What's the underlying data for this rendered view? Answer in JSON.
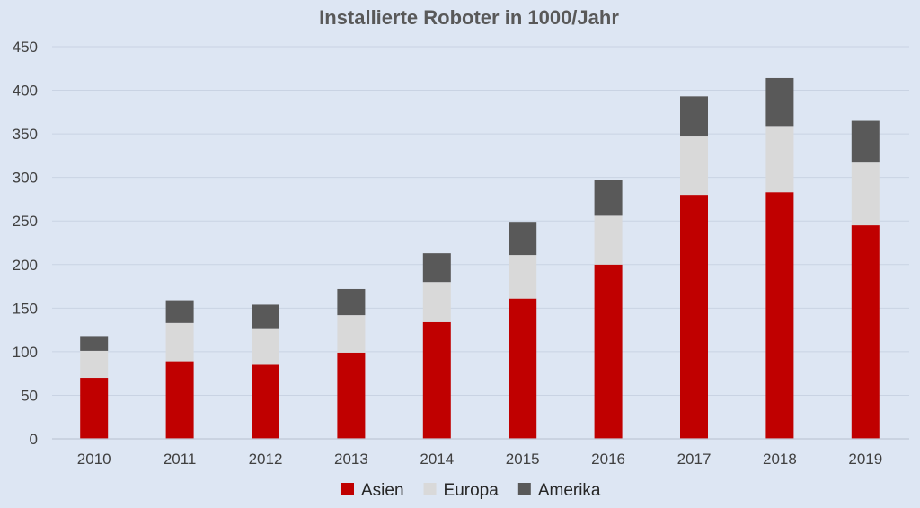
{
  "chart_data": {
    "type": "bar",
    "stacked": true,
    "title": "Installierte Roboter in 1000/Jahr",
    "xlabel": "",
    "ylabel": "",
    "categories": [
      "2010",
      "2011",
      "2012",
      "2013",
      "2014",
      "2015",
      "2016",
      "2017",
      "2018",
      "2019"
    ],
    "series": [
      {
        "name": "Asien",
        "color": "#c00000",
        "values": [
          70,
          89,
          85,
          99,
          134,
          161,
          200,
          280,
          283,
          245
        ]
      },
      {
        "name": "Europa",
        "color": "#d9d9d9",
        "values": [
          31,
          44,
          41,
          43,
          46,
          50,
          56,
          67,
          76,
          72
        ]
      },
      {
        "name": "Amerika",
        "color": "#595959",
        "values": [
          17,
          26,
          28,
          30,
          33,
          38,
          41,
          46,
          55,
          48
        ]
      }
    ],
    "ylim": [
      0,
      450
    ],
    "yticks": [
      0,
      50,
      100,
      150,
      200,
      250,
      300,
      350,
      400,
      450
    ],
    "grid": true,
    "legend_position": "bottom"
  }
}
